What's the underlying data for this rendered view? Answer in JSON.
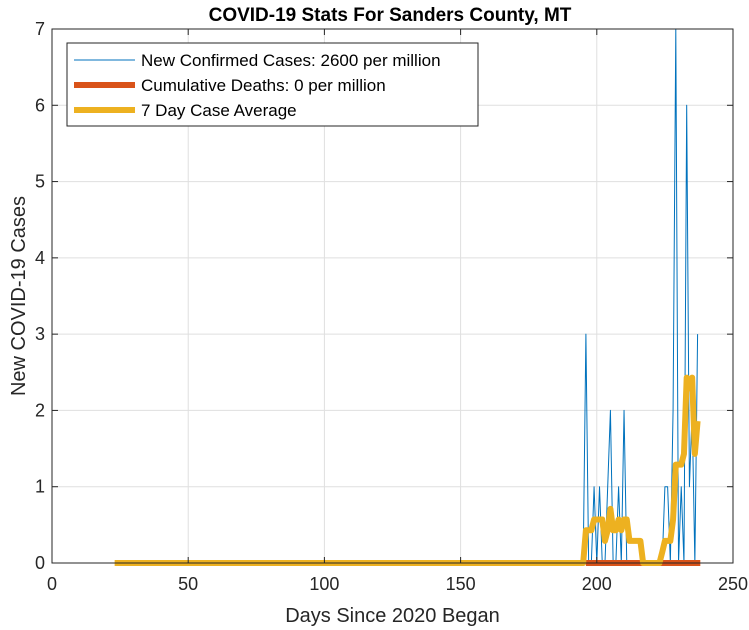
{
  "chart_data": {
    "type": "line",
    "title": "COVID-19 Stats For Sanders County, MT",
    "xlabel": "Days Since 2020 Began",
    "ylabel": "New COVID-19 Cases",
    "xlim": [
      0,
      250
    ],
    "ylim": [
      0,
      7
    ],
    "xticks": [
      0,
      50,
      100,
      150,
      200,
      250
    ],
    "yticks": [
      0,
      1,
      2,
      3,
      4,
      5,
      6,
      7
    ],
    "grid": true,
    "legend_position": "top-left",
    "series": [
      {
        "name": "New Confirmed Cases: 2600 per million",
        "color": "#0072BD",
        "line_width": "thin",
        "x": [
          23,
          195,
          196,
          197,
          198,
          199,
          200,
          201,
          202,
          203,
          204,
          205,
          206,
          207,
          208,
          209,
          210,
          211,
          212,
          213,
          214,
          215,
          216,
          217,
          218,
          219,
          220,
          221,
          222,
          223,
          224,
          225,
          226,
          227,
          228,
          229,
          230,
          231,
          232,
          233,
          234,
          235,
          236,
          237
        ],
        "y": [
          0,
          0,
          3,
          0,
          0,
          1,
          0,
          1,
          0,
          0,
          1,
          2,
          0,
          0,
          1,
          0,
          2,
          0,
          0,
          0,
          0,
          0,
          0,
          0,
          0,
          0,
          0,
          0,
          0,
          0,
          0,
          1,
          1,
          0,
          2,
          7,
          0,
          1,
          0,
          6,
          1,
          2,
          0,
          3
        ]
      },
      {
        "name": "Cumulative Deaths: 0 per million",
        "color": "#D95319",
        "line_width": "thick",
        "x": [
          196,
          238
        ],
        "y": [
          0,
          0
        ]
      },
      {
        "name": "7 Day Case Average",
        "color": "#EDB120",
        "line_width": "thick",
        "x": [
          23,
          195,
          196,
          197,
          198,
          199,
          200,
          201,
          202,
          203,
          204,
          205,
          206,
          207,
          208,
          209,
          210,
          211,
          212,
          213,
          214,
          215,
          216,
          217,
          218,
          219,
          220,
          221,
          222,
          223,
          224,
          225,
          226,
          227,
          228,
          229,
          230,
          231,
          232,
          233,
          234,
          235,
          236,
          237
        ],
        "y": [
          0,
          0,
          0.43,
          0.43,
          0.43,
          0.57,
          0.57,
          0.57,
          0.57,
          0.29,
          0.43,
          0.71,
          0.43,
          0.43,
          0.57,
          0.43,
          0.57,
          0.57,
          0.29,
          0.29,
          0.29,
          0.29,
          0.29,
          0,
          0,
          0,
          0,
          0,
          0,
          0,
          0.14,
          0.29,
          0.29,
          0.29,
          0.57,
          1.29,
          1.29,
          1.29,
          1.43,
          2.43,
          2.29,
          2.43,
          1.43,
          1.86
        ]
      }
    ]
  }
}
